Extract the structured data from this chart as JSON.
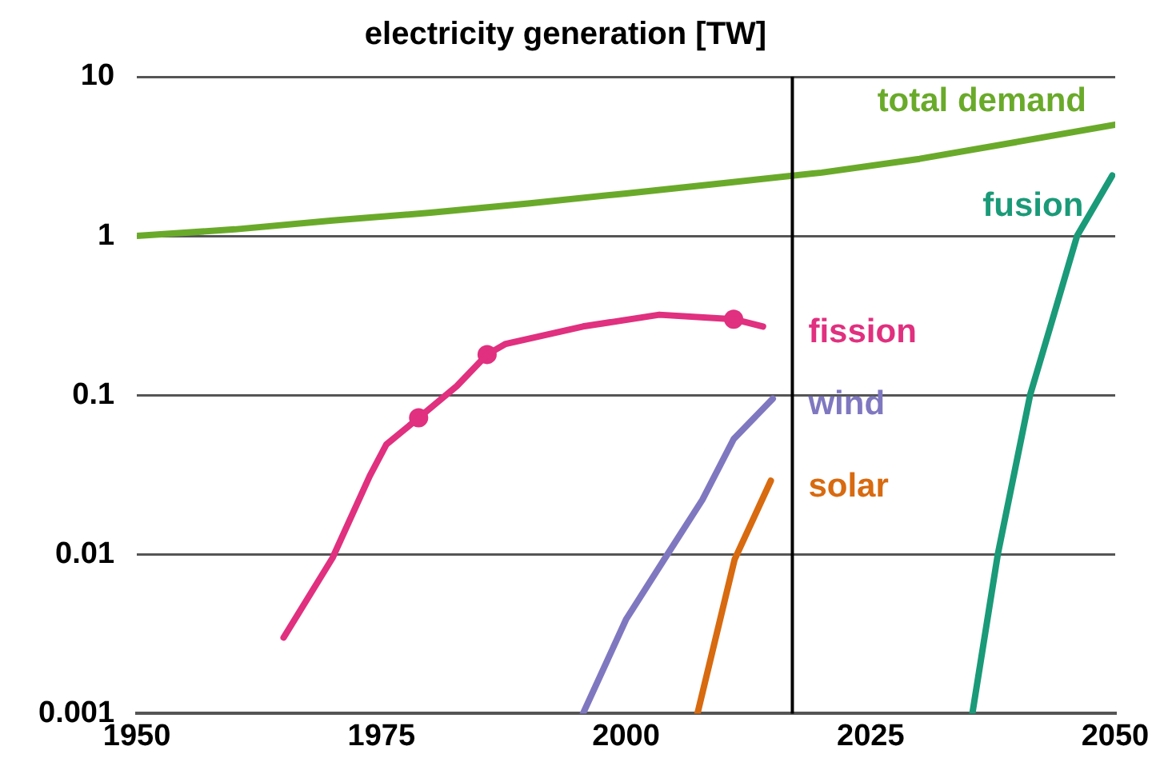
{
  "chart_data": {
    "type": "line",
    "title": "electricity generation [TW]",
    "log": "y",
    "grid": "y",
    "legend": false,
    "marker": "none",
    "xlim": [
      1950,
      2050
    ],
    "xticks": [
      1950,
      1975,
      2000,
      2025,
      2050
    ],
    "ylim": [
      0.001,
      10
    ],
    "yticks": [
      0.001,
      0.01,
      0.1,
      1,
      10
    ],
    "ref_lines": [
      {
        "axis": "x",
        "value": 2017,
        "color": "#000000"
      }
    ],
    "series": [
      {
        "name": "total demand",
        "color": "#6aaa2a",
        "x": [
          1950,
          1960,
          1970,
          1980,
          1990,
          2000,
          2010,
          2020,
          2030,
          2040,
          2050
        ],
        "values": [
          1,
          1.1,
          1.25,
          1.4,
          1.6,
          1.85,
          2.15,
          2.5,
          3.05,
          3.9,
          5
        ]
      },
      {
        "name": "fusion",
        "color": "#1a9a78",
        "x": [
          2035.4,
          2038,
          2041.3,
          2043.6,
          2046.1,
          2049.7
        ],
        "values": [
          0.001,
          0.01,
          0.1,
          0.3,
          1,
          2.4
        ]
      },
      {
        "name": "fission",
        "color": "#e0307f",
        "x": [
          1965,
          1970,
          1973.8,
          1975.5,
          1978.8,
          1982.7,
          1985.8,
          1987.7,
          1995.6,
          2003.4,
          2011,
          2014
        ],
        "values": [
          0.003,
          0.0095,
          0.031,
          0.049,
          0.072,
          0.114,
          0.18,
          0.21,
          0.27,
          0.32,
          0.3,
          0.27
        ]
      },
      {
        "type": "scatter",
        "marker": "circle",
        "color": "#e0307f",
        "x": [
          1978.8,
          1985.8,
          2011
        ],
        "values": [
          0.072,
          0.18,
          0.3
        ]
      },
      {
        "name": "wind",
        "color": "#7f78c0",
        "x": [
          1995.6,
          2000,
          2004,
          2007.8,
          2011,
          2015
        ],
        "values": [
          0.001,
          0.0039,
          0.0095,
          0.022,
          0.053,
          0.095
        ]
      },
      {
        "name": "solar",
        "color": "#d86a10",
        "x": [
          2007.3,
          2011.1,
          2014.8
        ],
        "values": [
          0.001,
          0.0093,
          0.029
        ]
      }
    ]
  }
}
